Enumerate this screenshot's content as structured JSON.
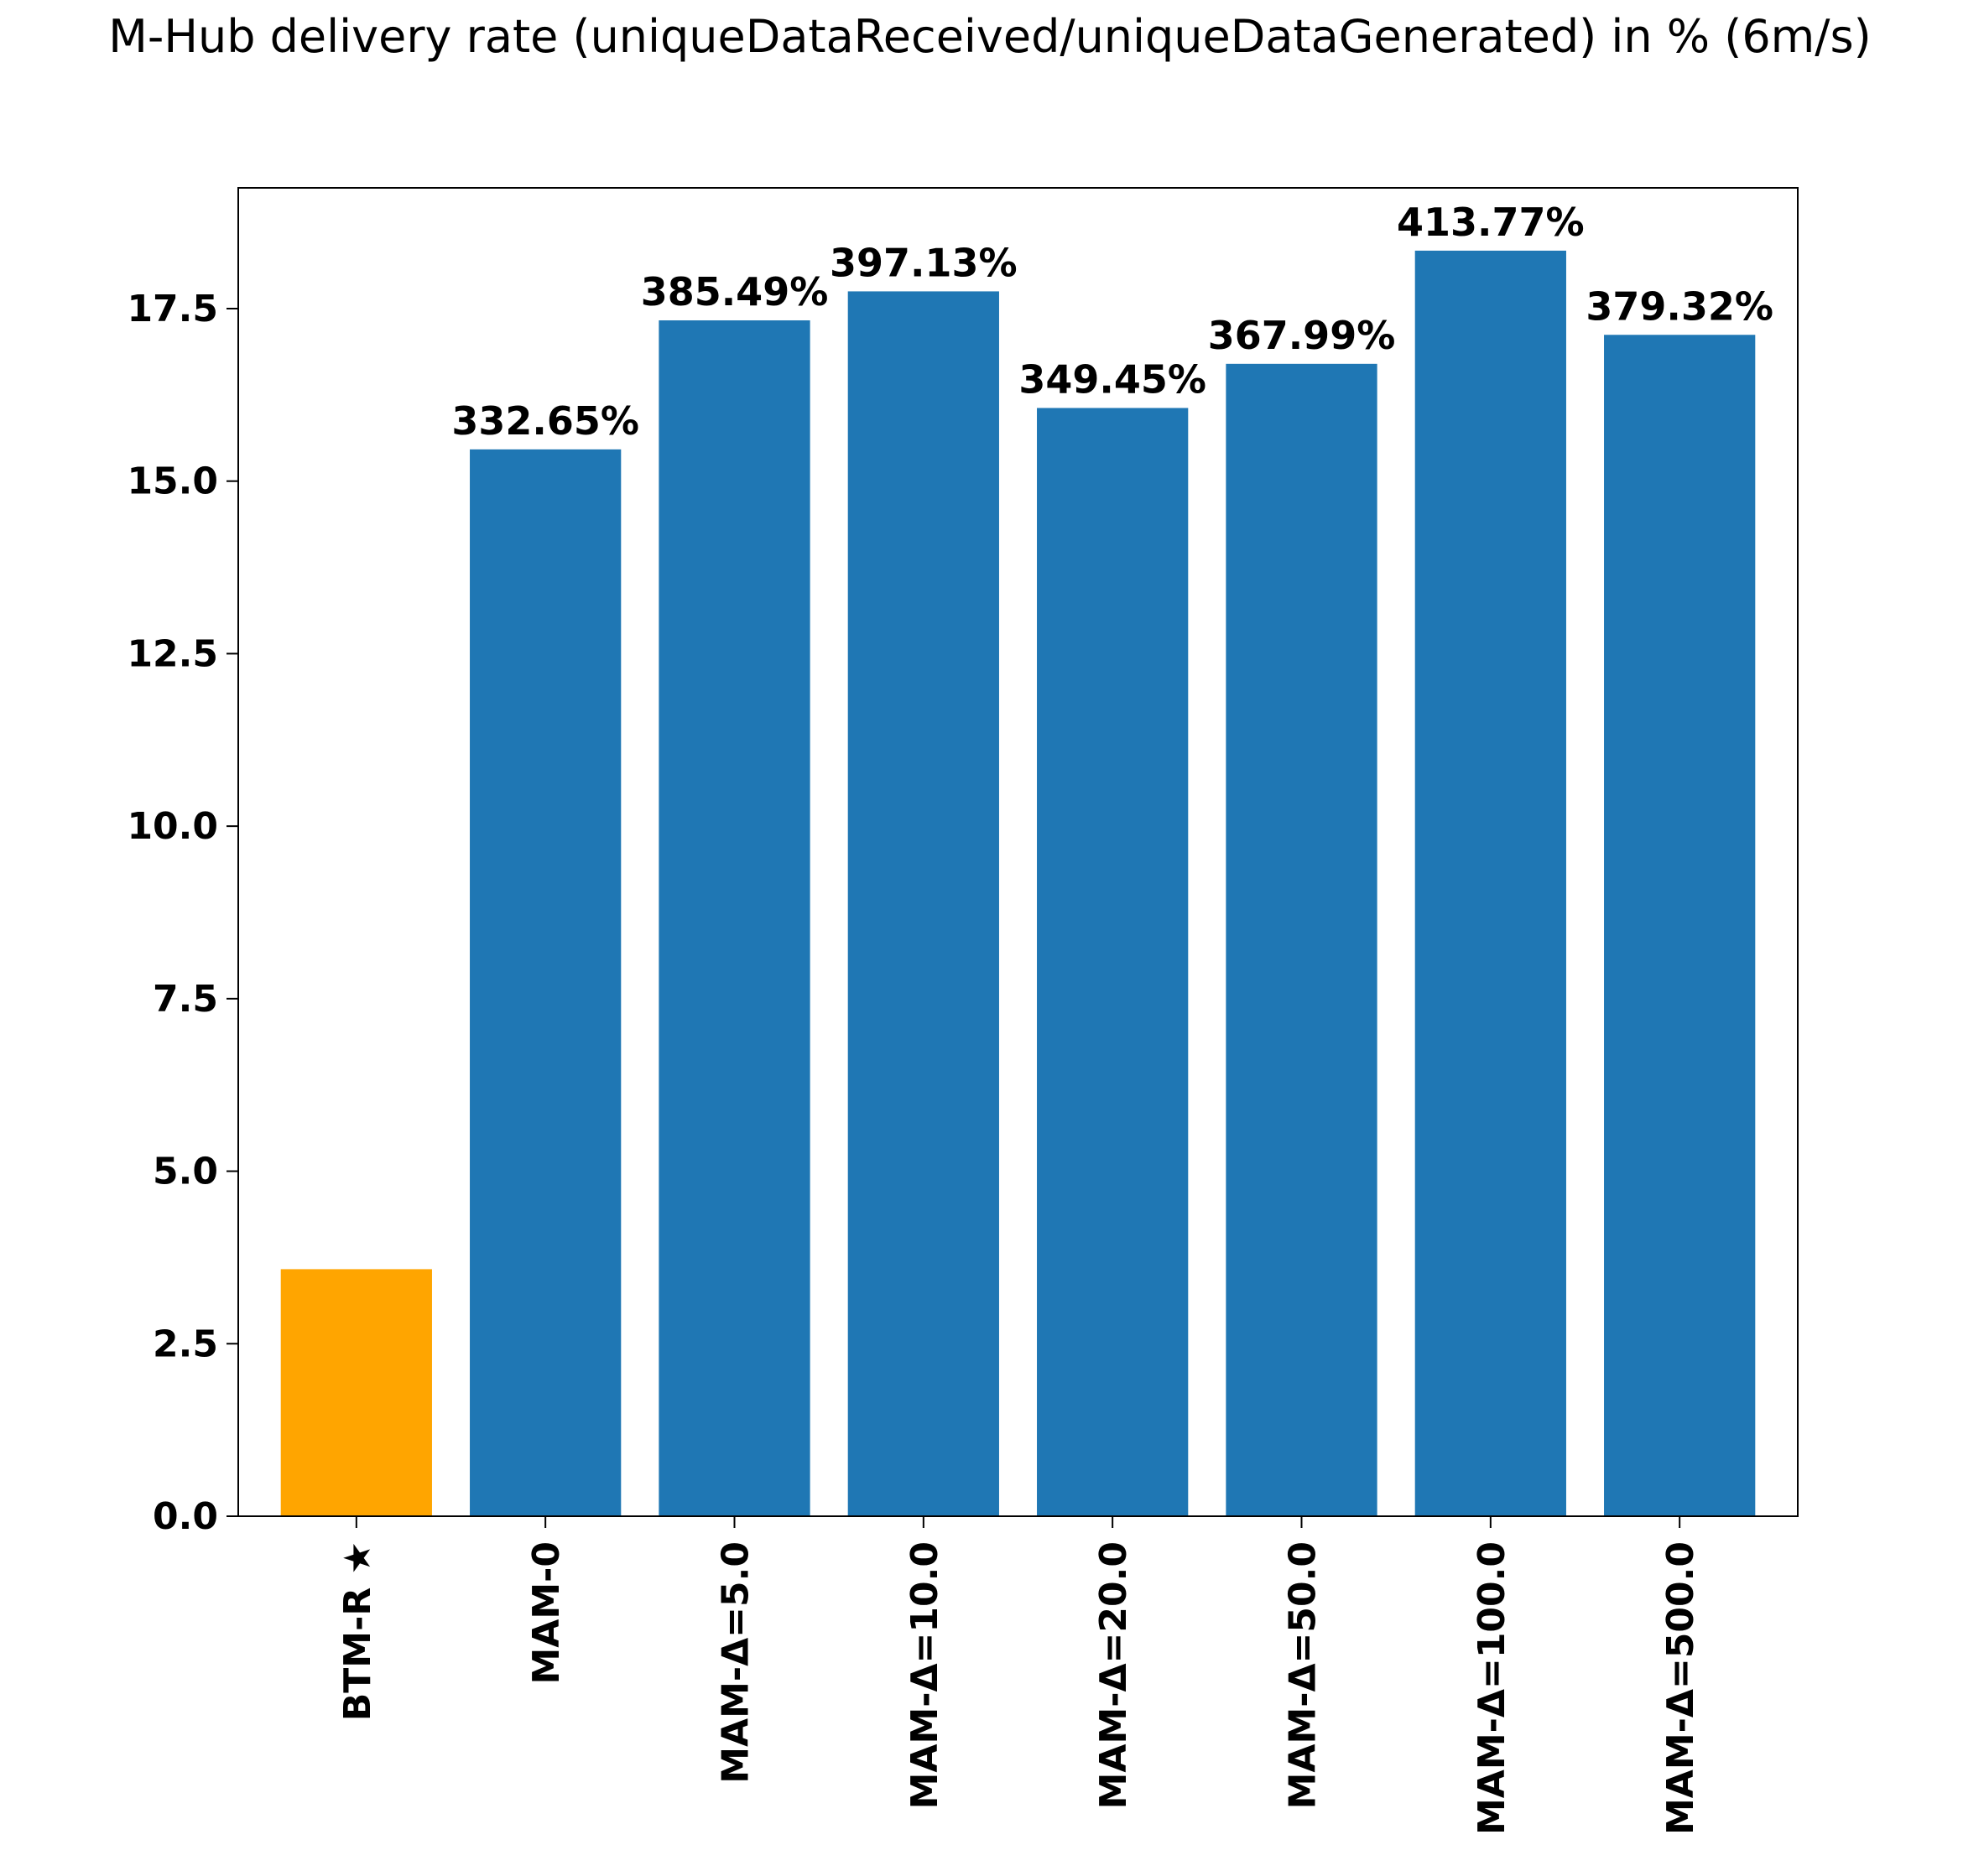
{
  "chart_data": {
    "type": "bar",
    "title": "M-Hub delivery rate (uniqueDataReceived/uniqueDataGenerated) in % (6m/s)",
    "xlabel": "",
    "ylabel": "",
    "ylim": [
      0,
      19.25
    ],
    "yticks": [
      0.0,
      2.5,
      5.0,
      7.5,
      10.0,
      12.5,
      15.0,
      17.5
    ],
    "ytick_labels": [
      "0.0",
      "2.5",
      "5.0",
      "7.5",
      "10.0",
      "12.5",
      "15.0",
      "17.5"
    ],
    "categories": [
      "BTM-R ★",
      "MAM-0",
      "MAM-Δ=5.0",
      "MAM-Δ=10.0",
      "MAM-Δ=20.0",
      "MAM-Δ=50.0",
      "MAM-Δ=100.0",
      "MAM-Δ=500.0"
    ],
    "values": [
      3.58,
      15.46,
      17.33,
      17.75,
      16.06,
      16.7,
      18.34,
      17.12
    ],
    "bar_labels": [
      "",
      "332.65%",
      "385.49%",
      "397.13%",
      "349.45%",
      "367.99%",
      "413.77%",
      "379.32%"
    ],
    "bar_colors": [
      "#ffa500",
      "#1f77b4",
      "#1f77b4",
      "#1f77b4",
      "#1f77b4",
      "#1f77b4",
      "#1f77b4",
      "#1f77b4"
    ],
    "grid": false,
    "legend": "none"
  }
}
